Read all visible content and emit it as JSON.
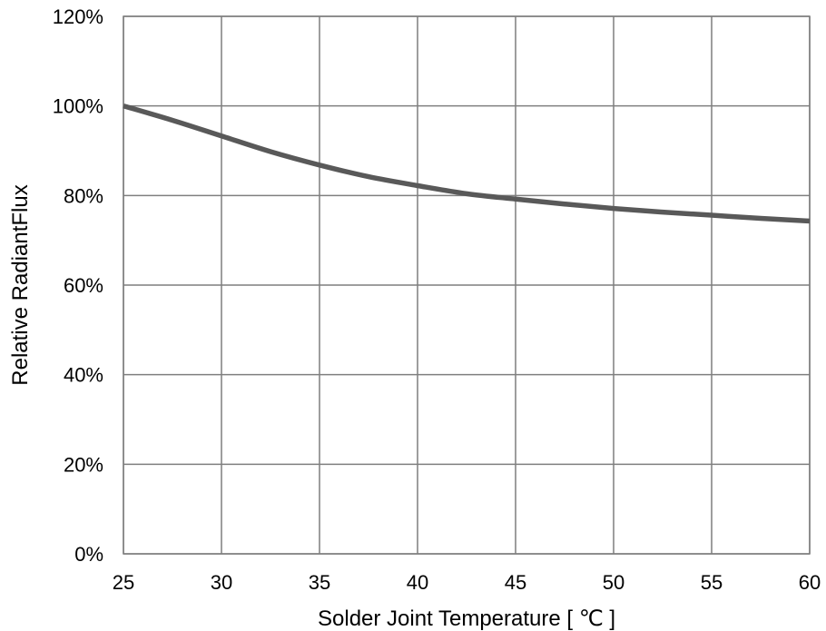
{
  "chart_data": {
    "type": "line",
    "title": "",
    "xlabel": "Solder Joint Temperature [ ℃ ]",
    "ylabel": "Relative RadiantFlux",
    "xlim": [
      25,
      60
    ],
    "ylim": [
      0,
      120
    ],
    "x_ticks": [
      25,
      30,
      35,
      40,
      45,
      50,
      55,
      60
    ],
    "x_tick_labels": [
      "25",
      "30",
      "35",
      "40",
      "45",
      "50",
      "55",
      "60"
    ],
    "y_ticks": [
      0,
      20,
      40,
      60,
      80,
      100,
      120
    ],
    "y_tick_labels": [
      "0%",
      "20%",
      "40%",
      "60%",
      "80%",
      "100%",
      "120%"
    ],
    "grid": true,
    "legend": "none",
    "series": [
      {
        "color": "#595959",
        "x": [
          25,
          27.5,
          30,
          32.5,
          35,
          37.5,
          40,
          42.5,
          45,
          47.5,
          50,
          52.5,
          55,
          57.5,
          60
        ],
        "y": [
          100,
          96.8,
          93.3,
          89.8,
          86.8,
          84.2,
          82.2,
          80.4,
          79.2,
          78.1,
          77.1,
          76.3,
          75.6,
          74.9,
          74.3
        ]
      }
    ]
  }
}
